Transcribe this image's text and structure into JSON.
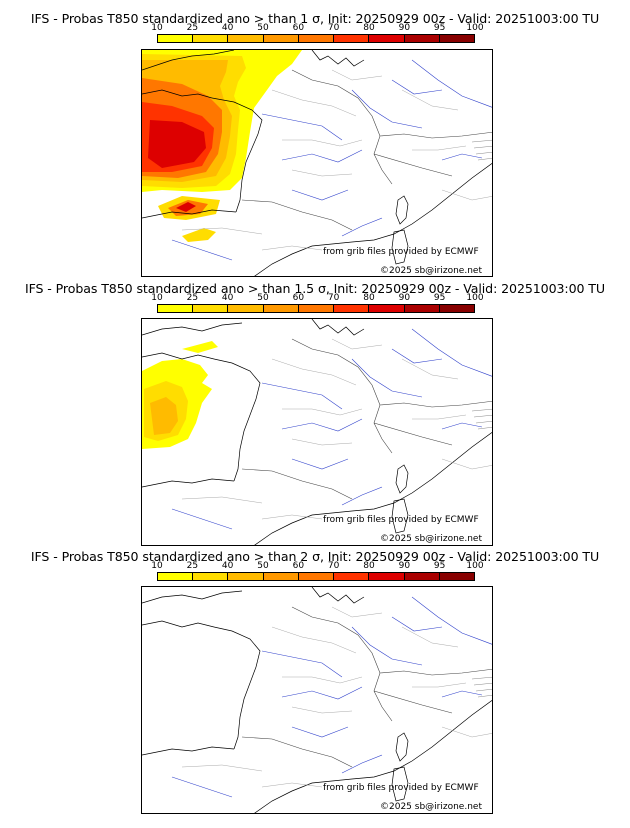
{
  "legend": {
    "labels": [
      "10",
      "25",
      "40",
      "50",
      "60",
      "70",
      "80",
      "90",
      "95",
      "100"
    ],
    "colors": [
      "#ffff00",
      "#ffdd00",
      "#ffbb00",
      "#ff9900",
      "#ff7700",
      "#ff3300",
      "#dd0000",
      "#aa0000",
      "#880000"
    ]
  },
  "credits": {
    "source": "from grib files provided by ECMWF",
    "copyright": "©2025 sb@irizone.net"
  },
  "panels": [
    {
      "title": "IFS - Probas T850  standardized ano > than 1 σ, Init: 20250929 00z - Valid: 20251003:00 TU"
    },
    {
      "title": "IFS - Probas T850  standardized ano > than 1.5 σ, Init: 20250929 00z - Valid: 20251003:00 TU"
    },
    {
      "title": "IFS - Probas T850  standardized ano > than 2 σ, Init: 20250929 00z - Valid: 20251003:00 TU"
    }
  ]
}
